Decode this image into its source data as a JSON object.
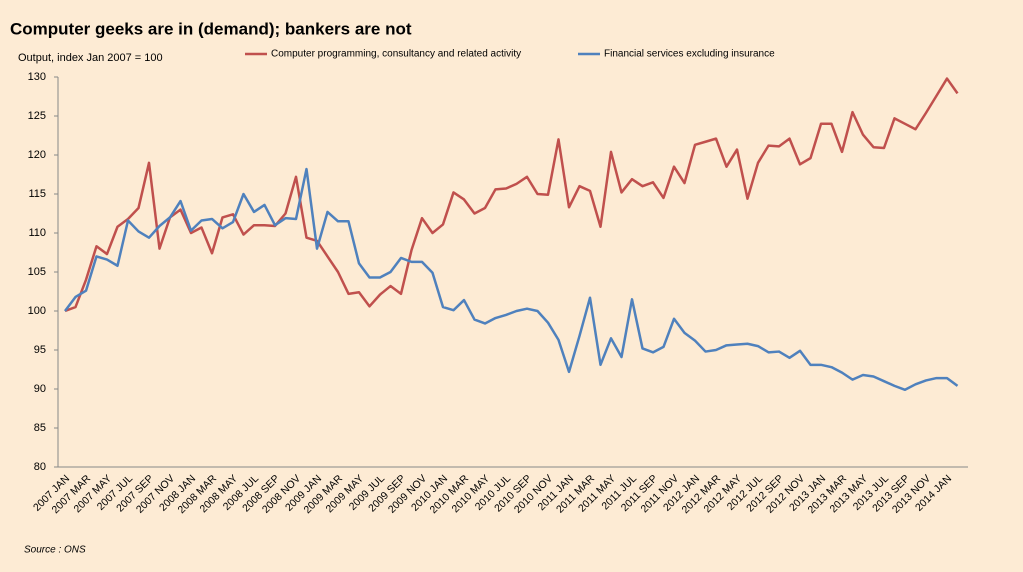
{
  "chart_data": {
    "type": "line",
    "title": "Computer geeks are in (demand); bankers are not",
    "y_label": "Output, index Jan 2007 = 100",
    "source": "Source : ONS",
    "legend": "top",
    "categories": [
      "2007 JAN",
      null,
      "2007 MAR",
      null,
      "2007 MAY",
      null,
      "2007 JUL",
      null,
      "2007 SEP",
      null,
      "2007 NOV",
      null,
      "2008 JAN",
      null,
      "2008 MAR",
      null,
      "2008 MAY",
      null,
      "2008 JUL",
      null,
      "2008 SEP",
      null,
      "2008 NOV",
      null,
      "2009 JAN",
      null,
      "2009 MAR",
      null,
      "2009 MAY",
      null,
      "2009 JUL",
      null,
      "2009 SEP",
      null,
      "2009 NOV",
      null,
      "2010 JAN",
      null,
      "2010 MAR",
      null,
      "2010 MAY",
      null,
      "2010 JUL",
      null,
      "2010 SEP",
      null,
      "2010 NOV",
      null,
      "2011 JAN",
      null,
      "2011 MAR",
      null,
      "2011 MAY",
      null,
      "2011 JUL",
      null,
      "2011 SEP",
      null,
      "2011 NOV",
      null,
      "2012 JAN",
      null,
      "2012 MAR",
      null,
      "2012 MAY",
      null,
      "2012 JUL",
      null,
      "2012 SEP",
      null,
      "2012 NOV",
      null,
      "2013 JAN",
      null,
      "2013 MAR",
      null,
      "2013 MAY",
      null,
      "2013 JUL",
      null,
      "2013 SEP",
      null,
      "2013 NOV",
      null,
      "2014 JAN",
      null
    ],
    "series": [
      {
        "name": "Computer programming, consultancy and related activity",
        "color": "#c0504d",
        "values": [
          100,
          100.5,
          104,
          108.3,
          107.3,
          110.8,
          111.8,
          113.2,
          119,
          108,
          112,
          113,
          110,
          110.7,
          107.4,
          112,
          112.4,
          109.8,
          111,
          111,
          110.9,
          112.5,
          117.2,
          109.4,
          109,
          107,
          105,
          102.2,
          102.4,
          100.6,
          102.1,
          103.2,
          102.2,
          107.8,
          111.9,
          110,
          111.1,
          115.2,
          114.3,
          112.5,
          113.2,
          115.6,
          115.7,
          116.3,
          117.2,
          115,
          114.9,
          122,
          113.3,
          116,
          115.4,
          110.8,
          120.4,
          115.2,
          116.9,
          116,
          116.5,
          114.5,
          118.5,
          116.4,
          121.3,
          121.7,
          122.1,
          118.5,
          120.7,
          114.4,
          119,
          121.2,
          121.1,
          122.1,
          118.8,
          119.6,
          124,
          124,
          120.4,
          125.5,
          122.6,
          121,
          120.9,
          124.7,
          124,
          123.3,
          125.4,
          127.6,
          129.8,
          127.9
        ]
      },
      {
        "name": "Financial services excluding insurance",
        "color": "#4f81bd",
        "values": [
          100,
          101.8,
          102.6,
          107,
          106.6,
          105.8,
          111.6,
          110.2,
          109.4,
          110.9,
          112,
          114.1,
          110.3,
          111.6,
          111.8,
          110.6,
          111.4,
          115,
          112.7,
          113.6,
          111,
          111.9,
          111.8,
          118.2,
          108,
          112.7,
          111.5,
          111.5,
          106.1,
          104.3,
          104.3,
          105,
          106.8,
          106.3,
          106.3,
          104.9,
          100.5,
          100.1,
          101.4,
          98.9,
          98.4,
          99.1,
          99.5,
          100,
          100.3,
          100,
          98.5,
          96.3,
          92.2,
          96.8,
          101.7,
          93.1,
          96.5,
          94.1,
          101.5,
          95.2,
          94.7,
          95.4,
          99,
          97.2,
          96.2,
          94.8,
          95,
          95.6,
          95.7,
          95.8,
          95.5,
          94.7,
          94.8,
          94,
          94.9,
          93.1,
          93.1,
          92.8,
          92.1,
          91.2,
          91.8,
          91.6,
          91,
          90.4,
          89.9,
          90.6,
          91.1,
          91.4,
          91.4,
          90.4
        ]
      }
    ],
    "ylim": [
      80,
      130
    ],
    "yticks": [
      80,
      85,
      90,
      95,
      100,
      105,
      110,
      115,
      120,
      125,
      130
    ],
    "grid": false
  }
}
